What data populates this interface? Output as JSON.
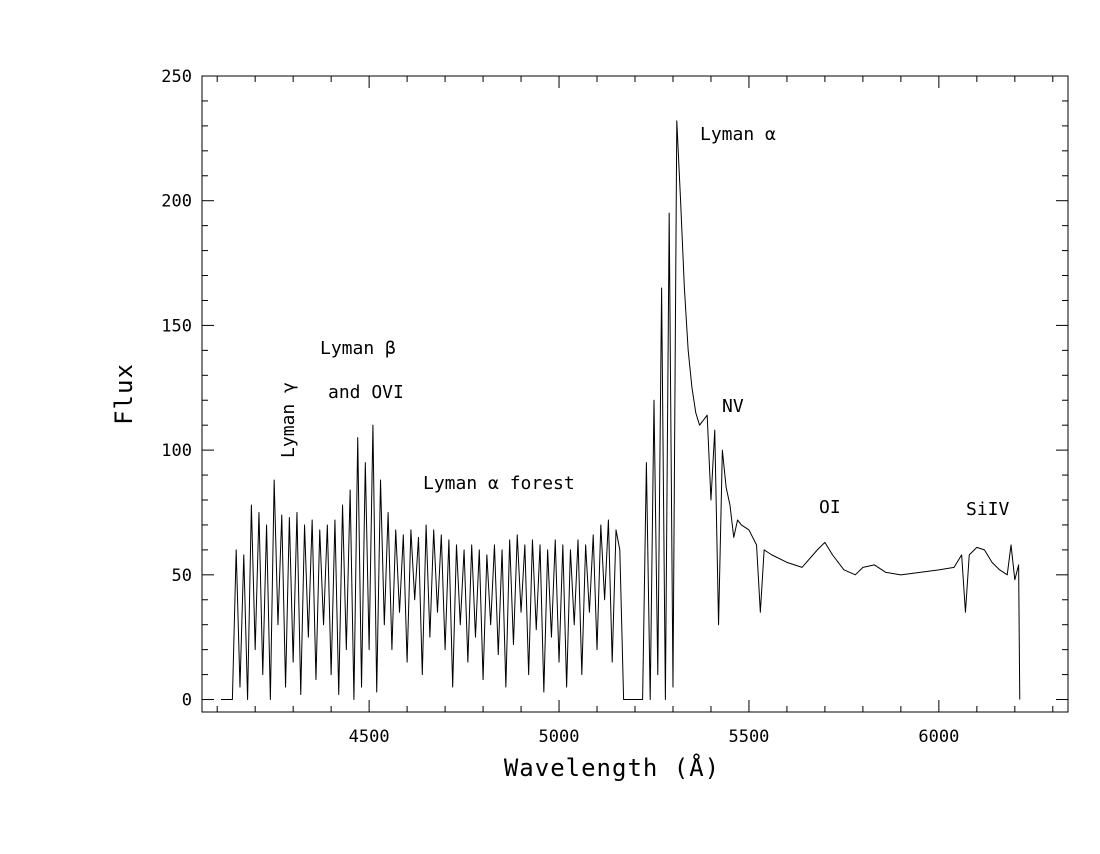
{
  "chart_data": {
    "type": "line",
    "xlabel": "Wavelength (Å)",
    "ylabel": "Flux",
    "annotations": [
      "Lyman α",
      "Lyman β",
      "and OVI",
      "Lyman γ",
      "Lyman α forest",
      "NV",
      "OI",
      "SiIV"
    ],
    "color": "#000000",
    "xlim": [
      4060,
      6340
    ],
    "ylim": [
      -5,
      250
    ],
    "xticks": [
      4500,
      5000,
      5500,
      6000
    ],
    "yticks": [
      0,
      50,
      100,
      150,
      200,
      250
    ],
    "grid": false,
    "x": [
      4110,
      4140,
      4150,
      4160,
      4170,
      4180,
      4190,
      4200,
      4210,
      4220,
      4230,
      4240,
      4250,
      4260,
      4270,
      4280,
      4290,
      4300,
      4310,
      4320,
      4330,
      4340,
      4350,
      4360,
      4370,
      4380,
      4390,
      4400,
      4410,
      4420,
      4430,
      4440,
      4450,
      4460,
      4470,
      4480,
      4490,
      4500,
      4510,
      4520,
      4530,
      4540,
      4550,
      4560,
      4570,
      4580,
      4590,
      4600,
      4610,
      4620,
      4630,
      4640,
      4650,
      4660,
      4670,
      4680,
      4690,
      4700,
      4710,
      4720,
      4730,
      4740,
      4750,
      4760,
      4770,
      4780,
      4790,
      4800,
      4810,
      4820,
      4830,
      4840,
      4850,
      4860,
      4870,
      4880,
      4890,
      4900,
      4910,
      4920,
      4930,
      4940,
      4950,
      4960,
      4970,
      4980,
      4990,
      5000,
      5010,
      5020,
      5030,
      5040,
      5050,
      5060,
      5070,
      5080,
      5090,
      5100,
      5110,
      5120,
      5130,
      5140,
      5150,
      5160,
      5170,
      5220,
      5230,
      5240,
      5250,
      5260,
      5270,
      5280,
      5290,
      5300,
      5310,
      5320,
      5330,
      5340,
      5350,
      5360,
      5370,
      5380,
      5390,
      5400,
      5410,
      5420,
      5430,
      5440,
      5450,
      5460,
      5470,
      5480,
      5500,
      5520,
      5530,
      5540,
      5560,
      5600,
      5640,
      5680,
      5700,
      5720,
      5750,
      5780,
      5800,
      5830,
      5860,
      5900,
      5950,
      6000,
      6040,
      6060,
      6070,
      6080,
      6100,
      6120,
      6140,
      6160,
      6180,
      6190,
      6200,
      6210,
      6213
    ],
    "values": [
      0,
      0,
      60,
      5,
      58,
      0,
      78,
      20,
      75,
      10,
      70,
      0,
      88,
      30,
      74,
      5,
      73,
      15,
      75,
      2,
      70,
      25,
      72,
      8,
      68,
      30,
      70,
      10,
      72,
      2,
      78,
      20,
      84,
      0,
      105,
      5,
      95,
      20,
      110,
      3,
      88,
      30,
      75,
      20,
      68,
      35,
      66,
      15,
      68,
      40,
      65,
      10,
      70,
      25,
      68,
      35,
      66,
      20,
      64,
      5,
      62,
      30,
      60,
      15,
      62,
      25,
      60,
      8,
      58,
      30,
      62,
      18,
      60,
      5,
      64,
      22,
      66,
      35,
      62,
      10,
      64,
      28,
      62,
      3,
      60,
      25,
      64,
      15,
      62,
      5,
      60,
      30,
      64,
      10,
      62,
      35,
      66,
      20,
      70,
      40,
      72,
      15,
      68,
      60,
      0,
      0,
      95,
      0,
      120,
      10,
      165,
      0,
      195,
      5,
      232,
      200,
      165,
      140,
      125,
      115,
      110,
      112,
      114,
      80,
      108,
      30,
      100,
      85,
      78,
      65,
      72,
      70,
      68,
      62,
      35,
      60,
      58,
      55,
      53,
      60,
      63,
      58,
      52,
      50,
      53,
      54,
      51,
      50,
      51,
      52,
      53,
      58,
      35,
      58,
      61,
      60,
      55,
      52,
      50,
      62,
      48,
      54,
      0
    ]
  }
}
